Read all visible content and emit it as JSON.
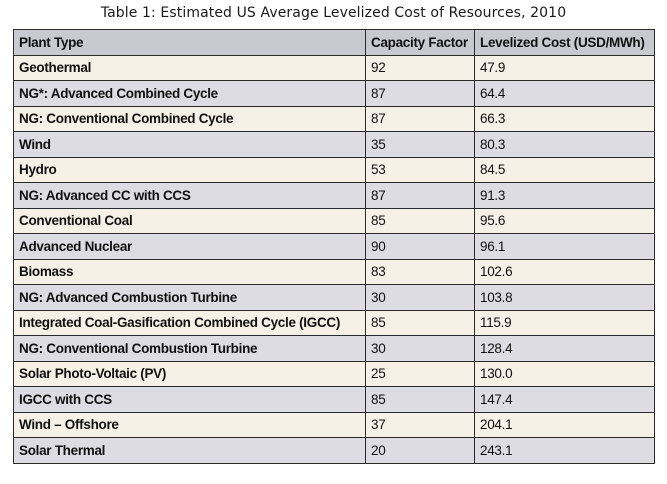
{
  "table": {
    "caption": "Table 1: Estimated US Average Levelized Cost of Resources, 2010",
    "headers": [
      "Plant Type",
      "Capacity Factor",
      "Levelized Cost (USD/MWh)"
    ],
    "rows": [
      [
        "Geothermal",
        "92",
        "47.9"
      ],
      [
        "NG*: Advanced Combined Cycle",
        "87",
        "64.4"
      ],
      [
        "NG: Conventional Combined Cycle",
        "87",
        "66.3"
      ],
      [
        "Wind",
        "35",
        "80.3"
      ],
      [
        "Hydro",
        "53",
        "84.5"
      ],
      [
        "NG: Advanced CC with CCS",
        "87",
        "91.3"
      ],
      [
        "Conventional Coal",
        "85",
        "95.6"
      ],
      [
        "Advanced Nuclear",
        "90",
        "96.1"
      ],
      [
        "Biomass",
        "83",
        "102.6"
      ],
      [
        "NG: Advanced Combustion Turbine",
        "30",
        "103.8"
      ],
      [
        "Integrated Coal-Gasification Combined Cycle (IGCC)",
        "85",
        "115.9"
      ],
      [
        "NG: Conventional Combustion Turbine",
        "30",
        "128.4"
      ],
      [
        "Solar Photo-Voltaic (PV)",
        "25",
        "130.0"
      ],
      [
        "IGCC with CCS",
        "85",
        "147.4"
      ],
      [
        "Wind – Offshore",
        "37",
        "204.1"
      ],
      [
        "Solar Thermal",
        "20",
        "243.1"
      ]
    ]
  }
}
